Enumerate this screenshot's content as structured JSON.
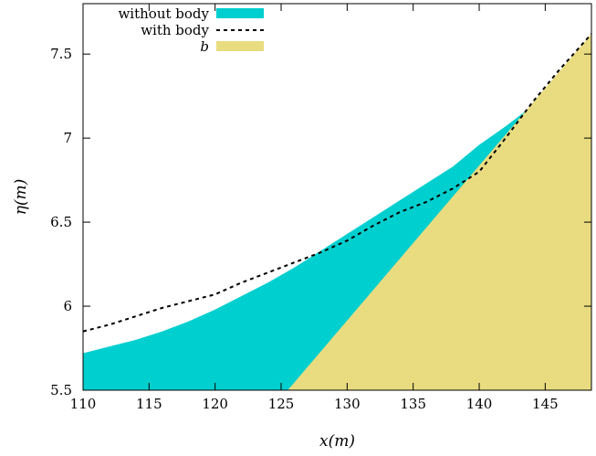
{
  "chart_data": {
    "type": "area",
    "xlabel": "x(m)",
    "ylabel": "η(m)",
    "xlim": [
      110,
      148.5
    ],
    "ylim": [
      5.5,
      7.8
    ],
    "xticks": [
      110,
      115,
      120,
      125,
      130,
      135,
      140,
      145
    ],
    "yticks": [
      5.5,
      6,
      6.5,
      7,
      7.5
    ],
    "ytick_labels": [
      "5.5",
      "6",
      "6.5",
      "7",
      "7.5"
    ],
    "legend_position": "top-left",
    "series": [
      {
        "name": "without body",
        "kind": "filled-area",
        "color": "#00cfcf",
        "x": [
          110,
          112,
          114,
          116,
          118,
          120,
          122,
          124,
          126,
          128,
          130,
          132,
          134,
          136,
          138,
          140,
          142,
          144,
          145
        ],
        "y": [
          5.72,
          5.76,
          5.8,
          5.85,
          5.91,
          5.98,
          6.06,
          6.14,
          6.23,
          6.33,
          6.43,
          6.53,
          6.63,
          6.73,
          6.83,
          6.96,
          7.07,
          7.19,
          7.26
        ]
      },
      {
        "name": "with body",
        "kind": "dashed-line",
        "color": "#000000",
        "x": [
          110,
          112,
          114,
          116,
          118,
          120,
          122,
          124,
          126,
          128,
          130,
          132,
          134,
          136,
          138,
          140,
          142,
          144,
          146,
          148.5
        ],
        "y": [
          5.85,
          5.89,
          5.94,
          5.99,
          6.03,
          6.07,
          6.14,
          6.2,
          6.26,
          6.32,
          6.39,
          6.48,
          6.56,
          6.62,
          6.7,
          6.8,
          7.0,
          7.21,
          7.4,
          7.62
        ]
      },
      {
        "name": "b",
        "kind": "filled-area",
        "color": "#e9dc80",
        "x": [
          125.5,
          148.5
        ],
        "y": [
          5.5,
          7.62
        ]
      }
    ]
  }
}
